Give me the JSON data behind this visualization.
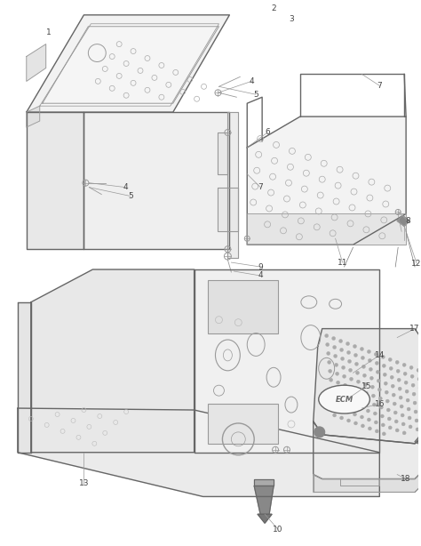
{
  "bg_color": "#ffffff",
  "lc": "#999999",
  "dc": "#666666",
  "label_color": "#444444"
}
